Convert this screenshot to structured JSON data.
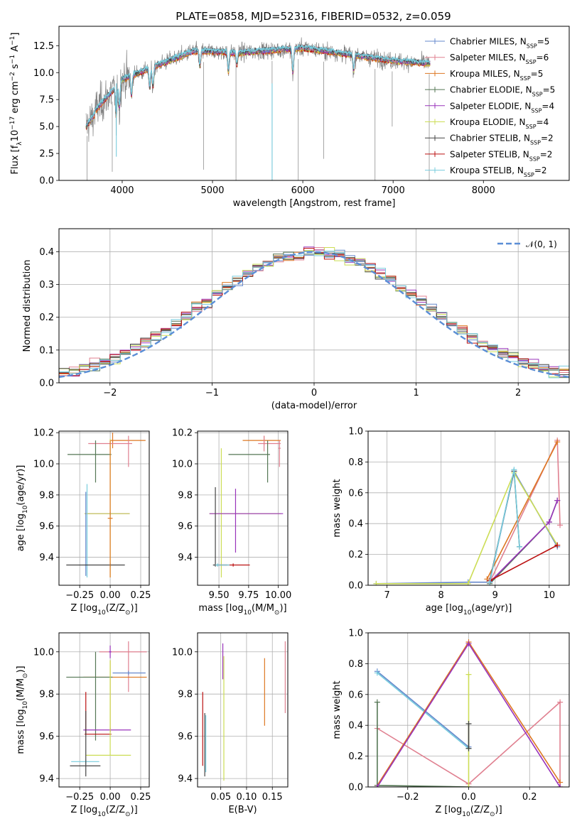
{
  "figure_title": "PLATE=0858, MJD=52316, FIBERID=0532, z=0.059",
  "colors": {
    "chabrier_miles": "#6688cc",
    "salpeter_miles": "#e08090",
    "kroupa_miles": "#dd7722",
    "chabrier_elodie": "#557755",
    "salpeter_elodie": "#9933bb",
    "kroupa_elodie": "#ccdd55",
    "chabrier_stelib": "#444444",
    "salpeter_stelib": "#bb1111",
    "kroupa_stelib": "#77ccdd",
    "data": "#808080",
    "normal": "#5b8ed6",
    "grid": "#b0b0b0"
  },
  "chart_data": [
    {
      "id": "spectrum",
      "type": "line",
      "title": "PLATE=0858, MJD=52316, FIBERID=0532, z=0.059",
      "xlabel": "wavelength [Angstrom, rest frame]",
      "ylabel": "Flux [f_λ 10^{-17} erg cm^{-2} s^{-1} A^{-1}]",
      "xlim": [
        3300,
        8950
      ],
      "ylim": [
        0,
        14.3
      ],
      "xticks": [
        "4000",
        "5000",
        "6000",
        "7000",
        "8000"
      ],
      "yticks": [
        "0.0",
        "2.5",
        "5.0",
        "7.5",
        "10.0",
        "12.5"
      ],
      "data_x_range": [
        3600,
        7410
      ],
      "model_x_range": [
        3600,
        7410
      ],
      "kroupa_stelib_x_range": [
        3600,
        7410
      ],
      "legend_position": "right",
      "legend": [
        {
          "label": "Chabrier MILES, N",
          "sub": "SSP",
          "tail": "=5",
          "color_key": "chabrier_miles"
        },
        {
          "label": "Salpeter MILES, N",
          "sub": "SSP",
          "tail": "=6",
          "color_key": "salpeter_miles"
        },
        {
          "label": "Kroupa MILES, N",
          "sub": "SSP",
          "tail": "=5",
          "color_key": "kroupa_miles"
        },
        {
          "label": "Chabrier ELODIE, N",
          "sub": "SSP",
          "tail": "=5",
          "color_key": "chabrier_elodie"
        },
        {
          "label": "Salpeter ELODIE, N",
          "sub": "SSP",
          "tail": "=4",
          "color_key": "salpeter_elodie"
        },
        {
          "label": "Kroupa ELODIE, N",
          "sub": "SSP",
          "tail": "=4",
          "color_key": "kroupa_elodie"
        },
        {
          "label": "Chabrier STELIB, N",
          "sub": "SSP",
          "tail": "=2",
          "color_key": "chabrier_stelib"
        },
        {
          "label": "Salpeter STELIB, N",
          "sub": "SSP",
          "tail": "=2",
          "color_key": "salpeter_stelib"
        },
        {
          "label": "Kroupa STELIB, N",
          "sub": "SSP",
          "tail": "=2",
          "color_key": "kroupa_stelib"
        }
      ]
    },
    {
      "id": "residuals",
      "type": "histogram",
      "xlabel": "(data-model)/error",
      "ylabel": "Normed distribution",
      "xlim": [
        -2.5,
        2.5
      ],
      "ylim": [
        0,
        0.47
      ],
      "xticks": [
        "−2",
        "−1",
        "0",
        "1",
        "2"
      ],
      "yticks": [
        "0.0",
        "0.1",
        "0.2",
        "0.3",
        "0.4"
      ],
      "bin_width": 0.1,
      "legend": [
        {
          "label": "𝒩(0, 1)",
          "color_key": "normal"
        }
      ]
    },
    {
      "id": "age_vs_Z",
      "type": "errorbar",
      "xlabel": "Z [log10(Z/Z⊙)]",
      "ylabel": "age  [log10(age/yr)]",
      "xlim": [
        -0.42,
        0.32
      ],
      "ylim": [
        9.22,
        10.21
      ],
      "xticks": [
        "−0.25",
        "0.00",
        "0.25"
      ],
      "yticks": [
        "9.4",
        "9.6",
        "9.8",
        "10.0",
        "10.2"
      ],
      "points": [
        {
          "model": "kroupa_miles",
          "x": 0.02,
          "xerr": [
            0.02,
            0.27
          ],
          "y": 10.15,
          "yerr": [
            0.05,
            0.05
          ]
        },
        {
          "model": "salpeter_miles",
          "x": 0.15,
          "xerr": [
            0.33,
            0.03
          ],
          "y": 10.13,
          "yerr": [
            0.15,
            0.05
          ]
        },
        {
          "model": "chabrier_elodie",
          "x": -0.12,
          "xerr": [
            0.23,
            0.13
          ],
          "y": 10.06,
          "yerr": [
            0.18,
            0.09
          ]
        },
        {
          "model": "salpeter_elodie",
          "x": 0.0,
          "xerr": [
            0.21,
            0.16
          ],
          "y": 9.68,
          "yerr": [
            0.01,
            0.01
          ]
        },
        {
          "model": "kroupa_elodie",
          "x": 0.0,
          "xerr": [
            0.21,
            0.16
          ],
          "y": 9.68,
          "yerr": [
            0.41,
            0.48
          ]
        },
        {
          "model": "kroupa_stelib",
          "x": -0.19,
          "xerr": [
            0.01,
            0.01
          ],
          "y": 9.35,
          "yerr": [
            0.08,
            0.52
          ]
        },
        {
          "model": "chabrier_miles",
          "x": -0.2,
          "xerr": [
            0.01,
            0.01
          ],
          "y": 9.35,
          "yerr": [
            0.07,
            0.47
          ]
        },
        {
          "model": "chabrier_stelib",
          "x": 0.0,
          "xerr": [
            0.36,
            0.12
          ],
          "y": 9.35,
          "yerr": [
            0.01,
            0.01
          ]
        },
        {
          "model": "kroupa_miles",
          "x": 0.0,
          "xerr": [
            0.02,
            0.02
          ],
          "y": 9.65,
          "yerr": [
            0.38,
            0.5
          ]
        }
      ]
    },
    {
      "id": "age_vs_mass",
      "type": "errorbar",
      "xlabel": "mass [log10(M/M⊙)]",
      "ylabel": "",
      "xlim": [
        9.32,
        10.08
      ],
      "ylim": [
        9.22,
        10.21
      ],
      "xticks": [
        "9.50",
        "9.75",
        "10.00"
      ],
      "yticks": [
        "9.4",
        "9.6",
        "9.8",
        "10.0",
        "10.2"
      ],
      "points": [
        {
          "model": "kroupa_miles",
          "x": 9.88,
          "xerr": [
            0.18,
            0.14
          ],
          "y": 10.15,
          "yerr": [
            0.03,
            0.03
          ]
        },
        {
          "model": "salpeter_miles",
          "x": 9.88,
          "xerr": [
            0.05,
            0.14
          ],
          "y": 10.13,
          "yerr": [
            0.05,
            0.05
          ]
        },
        {
          "model": "chabrier_elodie",
          "x": 9.91,
          "xerr": [
            0.33,
            0.02
          ],
          "y": 10.06,
          "yerr": [
            0.18,
            0.09
          ]
        },
        {
          "model": "kroupa_elodie",
          "x": 9.52,
          "xerr": [
            0.1,
            0.5
          ],
          "y": 9.68,
          "yerr": [
            0.41,
            0.42
          ]
        },
        {
          "model": "salpeter_elodie",
          "x": 9.64,
          "xerr": [
            0.22,
            0.4
          ],
          "y": 9.68,
          "yerr": [
            0.25,
            0.16
          ]
        },
        {
          "model": "chabrier_stelib",
          "x": 9.47,
          "xerr": [
            0.02,
            0.1
          ],
          "y": 9.35,
          "yerr": [
            0.01,
            0.5
          ]
        },
        {
          "model": "salpeter_stelib",
          "x": 9.62,
          "xerr": [
            0.14,
            0.14
          ],
          "y": 9.35,
          "yerr": [
            0.01,
            0.01
          ]
        },
        {
          "model": "kroupa_stelib",
          "x": 9.49,
          "xerr": [
            0.02,
            0.1
          ],
          "y": 9.35,
          "yerr": [
            0.01,
            0.01
          ]
        },
        {
          "model": "salpeter_miles",
          "x": 10.01,
          "xerr": [
            0.01,
            0.01
          ],
          "y": 10.1,
          "yerr": [
            0.12,
            0.05
          ]
        }
      ]
    },
    {
      "id": "weight_vs_age",
      "type": "line",
      "xlabel": "age  [log10(age/yr)]",
      "ylabel": "mass weight",
      "xlim": [
        6.65,
        10.37
      ],
      "ylim": [
        0,
        1.0
      ],
      "xticks": [
        "7",
        "8",
        "9",
        "10"
      ],
      "yticks": [
        "0.0",
        "0.2",
        "0.4",
        "0.6",
        "0.8",
        "1.0"
      ],
      "series": [
        {
          "model": "chabrier_miles",
          "x": [
            6.8,
            8.5,
            8.9,
            9.35,
            10.15
          ],
          "y": [
            0.01,
            0.02,
            0.02,
            0.74,
            0.25
          ]
        },
        {
          "model": "salpeter_miles",
          "x": [
            8.9,
            10.15,
            10.2
          ],
          "y": [
            0.02,
            0.94,
            0.39
          ]
        },
        {
          "model": "kroupa_miles",
          "x": [
            8.85,
            10.15
          ],
          "y": [
            0.04,
            0.93
          ]
        },
        {
          "model": "chabrier_elodie",
          "x": [
            8.9,
            10.0,
            10.15
          ],
          "y": [
            0.01,
            0.41,
            0.55
          ]
        },
        {
          "model": "salpeter_elodie",
          "x": [
            8.9,
            10.0,
            10.15
          ],
          "y": [
            0.02,
            0.41,
            0.55
          ]
        },
        {
          "model": "kroupa_elodie",
          "x": [
            6.8,
            8.5,
            9.35,
            10.15
          ],
          "y": [
            0.01,
            0.01,
            0.73,
            0.26
          ]
        },
        {
          "model": "chabrier_stelib",
          "x": [
            8.9,
            9.35,
            9.45
          ],
          "y": [
            0.03,
            0.74,
            0.25
          ]
        },
        {
          "model": "salpeter_stelib",
          "x": [
            8.9,
            10.15
          ],
          "y": [
            0.03,
            0.26
          ]
        },
        {
          "model": "kroupa_stelib",
          "x": [
            8.9,
            9.35,
            9.45
          ],
          "y": [
            0.02,
            0.75,
            0.25
          ]
        }
      ]
    },
    {
      "id": "mass_vs_Z",
      "type": "errorbar",
      "xlabel": "Z [log10(Z/Z⊙)]",
      "ylabel": "mass [log10(M/M⊙)]",
      "xlim": [
        -0.42,
        0.32
      ],
      "ylim": [
        9.36,
        10.09
      ],
      "xticks": [
        "−0.25",
        "0.00",
        "0.25"
      ],
      "yticks": [
        "9.4",
        "9.6",
        "9.8",
        "10.0"
      ],
      "points": [
        {
          "model": "salpeter_miles",
          "x": 0.15,
          "xerr": [
            0.24,
            0.15
          ],
          "y": 10.0,
          "yerr": [
            0.19,
            0.05
          ]
        },
        {
          "model": "salpeter_elodie",
          "x": 0.0,
          "xerr": [
            0.01,
            0.01
          ],
          "y": 10.0,
          "yerr": [
            0.03,
            0.03
          ]
        },
        {
          "model": "chabrier_miles",
          "x": 0.15,
          "xerr": [
            0.13,
            0.14
          ],
          "y": 9.9,
          "yerr": [
            0.01,
            0.01
          ]
        },
        {
          "model": "kroupa_miles",
          "x": 0.0,
          "xerr": [
            0.22,
            0.3
          ],
          "y": 9.88,
          "yerr": [
            0.26,
            0.08
          ]
        },
        {
          "model": "chabrier_elodie",
          "x": -0.12,
          "xerr": [
            0.24,
            0.14
          ],
          "y": 9.88,
          "yerr": [
            0.3,
            0.12
          ]
        },
        {
          "model": "salpeter_elodie",
          "x": 0.0,
          "xerr": [
            0.22,
            0.17
          ],
          "y": 9.63,
          "yerr": [
            0.01,
            0.01
          ]
        },
        {
          "model": "salpeter_stelib",
          "x": -0.2,
          "xerr": [
            0.01,
            0.21
          ],
          "y": 9.61,
          "yerr": [
            0.0,
            0.2
          ]
        },
        {
          "model": "kroupa_elodie",
          "x": 0.0,
          "xerr": [
            0.2,
            0.17
          ],
          "y": 9.51,
          "yerr": [
            0.0,
            0.45
          ]
        },
        {
          "model": "kroupa_stelib",
          "x": -0.2,
          "xerr": [
            0.12,
            0.11
          ],
          "y": 9.48,
          "yerr": [
            0.01,
            0.01
          ]
        },
        {
          "model": "chabrier_stelib",
          "x": -0.2,
          "xerr": [
            0.13,
            0.12
          ],
          "y": 9.46,
          "yerr": [
            0.05,
            0.26
          ]
        }
      ]
    },
    {
      "id": "mass_vs_ebv",
      "type": "errorbar",
      "xlabel": "E(B-V)",
      "ylabel": "",
      "xlim": [
        0.005,
        0.18
      ],
      "ylim": [
        9.36,
        10.09
      ],
      "xticks": [
        "0.05",
        "0.10",
        "0.15"
      ],
      "yticks": [
        "9.4",
        "9.6",
        "9.8",
        "10.0"
      ],
      "points": [
        {
          "model": "salpeter_stelib",
          "x": 0.015,
          "yerr_range": [
            9.46,
            9.81
          ]
        },
        {
          "model": "chabrier_stelib",
          "x": 0.019,
          "yerr_range": [
            9.41,
            9.71
          ]
        },
        {
          "model": "kroupa_stelib",
          "x": 0.021,
          "yerr_range": [
            9.43,
            9.7
          ]
        },
        {
          "model": "salpeter_elodie",
          "x": 0.054,
          "yerr_range": [
            9.87,
            10.04
          ]
        },
        {
          "model": "kroupa_elodie",
          "x": 0.056,
          "yerr_range": [
            9.39,
            9.98
          ]
        },
        {
          "model": "kroupa_miles",
          "x": 0.135,
          "yerr_range": [
            9.65,
            9.97
          ]
        },
        {
          "model": "salpeter_miles",
          "x": 0.175,
          "yerr_range": [
            9.71,
            10.05
          ]
        }
      ]
    },
    {
      "id": "weight_vs_Z",
      "type": "line",
      "xlabel": "Z [log10(Z/Z⊙)]",
      "ylabel": "mass weight",
      "xlim": [
        -0.33,
        0.33
      ],
      "ylim": [
        0,
        1.0
      ],
      "xticks": [
        "−0.2",
        "0.0",
        "0.2"
      ],
      "yticks": [
        "0.0",
        "0.2",
        "0.4",
        "0.6",
        "0.8",
        "1.0"
      ],
      "series": [
        {
          "model": "chabrier_miles",
          "x": [
            -0.3,
            0.0
          ],
          "y": [
            0.75,
            0.26
          ]
        },
        {
          "model": "kroupa_stelib",
          "x": [
            -0.3,
            0.0
          ],
          "y": [
            0.74,
            0.25
          ]
        },
        {
          "model": "salpeter_miles",
          "x": [
            -0.3,
            0.0,
            0.3,
            0.3
          ],
          "y": [
            0.38,
            0.02,
            0.55,
            0.0
          ]
        },
        {
          "model": "kroupa_miles",
          "x": [
            -0.3,
            0.0,
            0.3
          ],
          "y": [
            0.01,
            0.94,
            0.03
          ]
        },
        {
          "model": "chabrier_elodie",
          "x": [
            -0.3,
            -0.3,
            0.0
          ],
          "y": [
            0.55,
            0.01,
            0.0
          ]
        },
        {
          "model": "salpeter_elodie",
          "x": [
            -0.3,
            0.0,
            0.3
          ],
          "y": [
            0.0,
            0.93,
            0.0
          ]
        },
        {
          "model": "kroupa_elodie",
          "x": [
            0.0,
            0.0
          ],
          "y": [
            0.73,
            0.0
          ]
        },
        {
          "model": "chabrier_stelib",
          "x": [
            0.0,
            0.0
          ],
          "y": [
            0.41,
            0.25
          ]
        }
      ]
    }
  ]
}
